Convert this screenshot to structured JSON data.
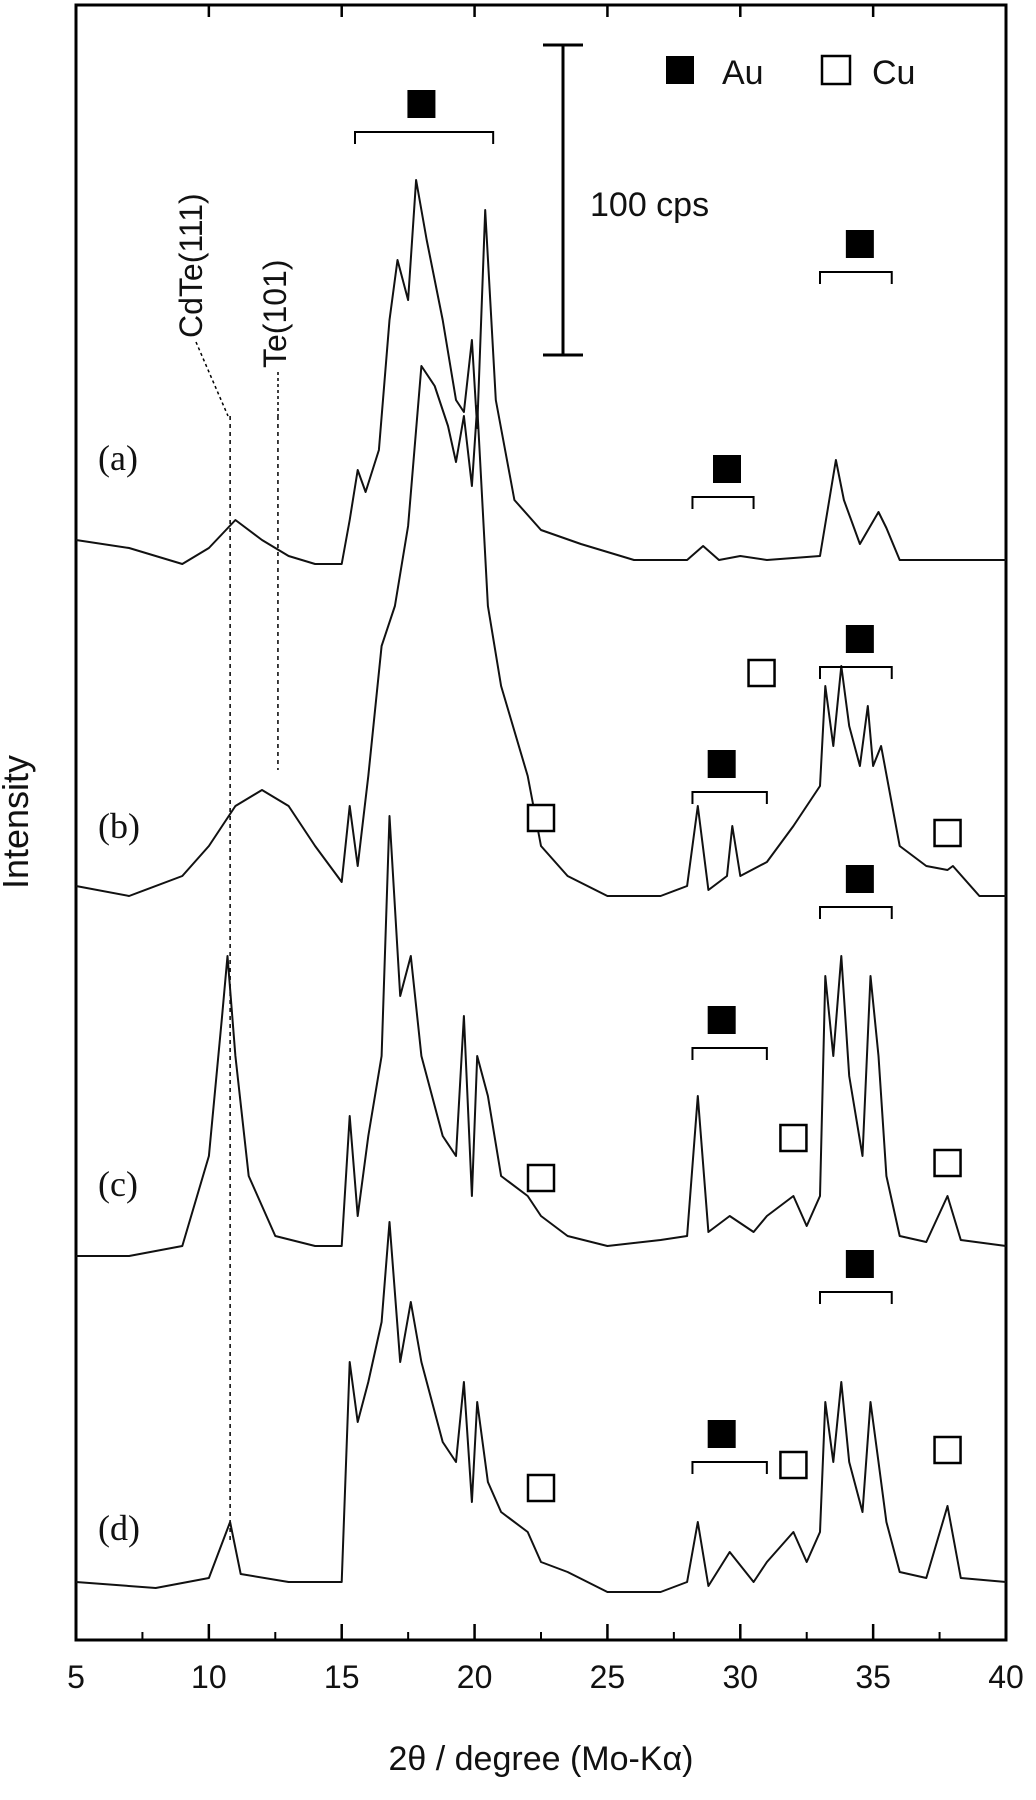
{
  "chart_data": {
    "type": "line",
    "title": "",
    "xlabel": "2θ / degree (Mo-Kα)",
    "ylabel": "Intensity",
    "xlim": [
      5,
      40
    ],
    "xticks": [
      5,
      10,
      15,
      20,
      25,
      30,
      35,
      40
    ],
    "legend": [
      {
        "name": "Au",
        "marker": "filled-square"
      },
      {
        "name": "Cu",
        "marker": "open-square"
      }
    ],
    "legend_position": "top-right",
    "scale_bar_label": "100 cps",
    "reference_lines": [
      {
        "label": "CdTe(111)",
        "x": 10.8
      },
      {
        "label": "Te(101)",
        "x": 12.6
      }
    ],
    "series": [
      {
        "name": "(a)",
        "baseline": 0,
        "points": [
          [
            5,
            0
          ],
          [
            7,
            -4
          ],
          [
            9,
            -12
          ],
          [
            10,
            -4
          ],
          [
            11,
            10
          ],
          [
            12,
            0
          ],
          [
            13,
            -8
          ],
          [
            14,
            -12
          ],
          [
            15,
            -12
          ],
          [
            15.3,
            10
          ],
          [
            15.6,
            35
          ],
          [
            15.9,
            24
          ],
          [
            16.4,
            45
          ],
          [
            16.8,
            110
          ],
          [
            17.1,
            140
          ],
          [
            17.5,
            120
          ],
          [
            17.8,
            180
          ],
          [
            18.2,
            150
          ],
          [
            18.8,
            110
          ],
          [
            19.3,
            70
          ],
          [
            19.6,
            64
          ],
          [
            19.9,
            100
          ],
          [
            20.1,
            56
          ],
          [
            20.4,
            165
          ],
          [
            20.8,
            70
          ],
          [
            21.5,
            20
          ],
          [
            22.5,
            5
          ],
          [
            24,
            -2
          ],
          [
            26,
            -10
          ],
          [
            28,
            -10
          ],
          [
            28.6,
            -3
          ],
          [
            29.2,
            -10
          ],
          [
            30,
            -8
          ],
          [
            31,
            -10
          ],
          [
            33,
            -8
          ],
          [
            33.6,
            40
          ],
          [
            33.9,
            20
          ],
          [
            34.5,
            -2
          ],
          [
            35.2,
            14
          ],
          [
            35.5,
            6
          ],
          [
            36,
            -10
          ],
          [
            38,
            -10
          ],
          [
            40,
            -10
          ]
        ],
        "markers": [
          {
            "type": "Au",
            "x": 18.0,
            "bracket": [
              15.5,
              20.7
            ]
          },
          {
            "type": "Au",
            "x": 29.5,
            "bracket": [
              28.2,
              30.5
            ]
          },
          {
            "type": "Au",
            "x": 34.5,
            "bracket": [
              33.0,
              35.7
            ]
          }
        ]
      },
      {
        "name": "(b)",
        "baseline": -140,
        "points": [
          [
            5,
            -140
          ],
          [
            7,
            -145
          ],
          [
            9,
            -135
          ],
          [
            10,
            -120
          ],
          [
            11,
            -100
          ],
          [
            12,
            -92
          ],
          [
            13,
            -100
          ],
          [
            14,
            -120
          ],
          [
            15,
            -138
          ],
          [
            15.3,
            -100
          ],
          [
            15.6,
            -130
          ],
          [
            16,
            -85
          ],
          [
            16.5,
            -20
          ],
          [
            17,
            0
          ],
          [
            17.5,
            40
          ],
          [
            18,
            120
          ],
          [
            18.5,
            110
          ],
          [
            19,
            90
          ],
          [
            19.3,
            72
          ],
          [
            19.6,
            95
          ],
          [
            19.9,
            60
          ],
          [
            20.1,
            100
          ],
          [
            20.5,
            0
          ],
          [
            21,
            -40
          ],
          [
            22,
            -85
          ],
          [
            22.5,
            -120
          ],
          [
            23.5,
            -135
          ],
          [
            25,
            -145
          ],
          [
            27,
            -145
          ],
          [
            28,
            -140
          ],
          [
            28.4,
            -100
          ],
          [
            28.8,
            -142
          ],
          [
            29.5,
            -135
          ],
          [
            29.7,
            -110
          ],
          [
            30,
            -135
          ],
          [
            31,
            -128
          ],
          [
            32,
            -110
          ],
          [
            33,
            -90
          ],
          [
            33.2,
            -40
          ],
          [
            33.5,
            -70
          ],
          [
            33.8,
            -30
          ],
          [
            34.1,
            -60
          ],
          [
            34.5,
            -80
          ],
          [
            34.8,
            -50
          ],
          [
            35,
            -80
          ],
          [
            35.3,
            -70
          ],
          [
            36,
            -120
          ],
          [
            37,
            -130
          ],
          [
            37.8,
            -132
          ],
          [
            38,
            -130
          ],
          [
            39,
            -145
          ],
          [
            40,
            -145
          ]
        ],
        "markers": [
          {
            "type": "Au",
            "x": 29.3,
            "bracket": [
              28.2,
              31.0
            ]
          },
          {
            "type": "Au",
            "x": 34.5,
            "bracket": [
              33.0,
              35.7
            ]
          },
          {
            "type": "Cu",
            "x": 22.5
          },
          {
            "type": "Cu",
            "x": 30.8
          },
          {
            "type": "Cu",
            "x": 37.8
          }
        ]
      },
      {
        "name": "(c)",
        "baseline": -290,
        "points": [
          [
            5,
            -300
          ],
          [
            7,
            -300
          ],
          [
            9,
            -295
          ],
          [
            10,
            -250
          ],
          [
            10.5,
            -180
          ],
          [
            10.7,
            -150
          ],
          [
            11,
            -200
          ],
          [
            11.5,
            -260
          ],
          [
            12.5,
            -290
          ],
          [
            14,
            -295
          ],
          [
            15,
            -295
          ],
          [
            15.3,
            -230
          ],
          [
            15.6,
            -280
          ],
          [
            16,
            -240
          ],
          [
            16.5,
            -200
          ],
          [
            16.8,
            -80
          ],
          [
            17.2,
            -170
          ],
          [
            17.6,
            -150
          ],
          [
            18,
            -200
          ],
          [
            18.8,
            -240
          ],
          [
            19.3,
            -250
          ],
          [
            19.6,
            -180
          ],
          [
            19.9,
            -270
          ],
          [
            20.1,
            -200
          ],
          [
            20.5,
            -220
          ],
          [
            21,
            -260
          ],
          [
            22,
            -270
          ],
          [
            22.5,
            -280
          ],
          [
            23.5,
            -290
          ],
          [
            25,
            -295
          ],
          [
            27,
            -292
          ],
          [
            28,
            -290
          ],
          [
            28.4,
            -220
          ],
          [
            28.8,
            -288
          ],
          [
            29.6,
            -280
          ],
          [
            30.5,
            -288
          ],
          [
            31,
            -280
          ],
          [
            32,
            -270
          ],
          [
            32.5,
            -285
          ],
          [
            33,
            -270
          ],
          [
            33.2,
            -160
          ],
          [
            33.5,
            -200
          ],
          [
            33.8,
            -150
          ],
          [
            34.1,
            -210
          ],
          [
            34.6,
            -250
          ],
          [
            34.9,
            -160
          ],
          [
            35.2,
            -200
          ],
          [
            35.5,
            -260
          ],
          [
            36,
            -290
          ],
          [
            37,
            -293
          ],
          [
            37.8,
            -270
          ],
          [
            38.3,
            -292
          ],
          [
            40,
            -295
          ]
        ],
        "markers": [
          {
            "type": "Au",
            "x": 29.3,
            "bracket": [
              28.2,
              31.0
            ]
          },
          {
            "type": "Au",
            "x": 34.5,
            "bracket": [
              33.0,
              35.7
            ]
          },
          {
            "type": "Cu",
            "x": 22.5
          },
          {
            "type": "Cu",
            "x": 32.0
          },
          {
            "type": "Cu",
            "x": 37.8
          }
        ]
      },
      {
        "name": "(d)",
        "baseline": -430,
        "points": [
          [
            5,
            -430
          ],
          [
            8,
            -433
          ],
          [
            10,
            -428
          ],
          [
            10.8,
            -400
          ],
          [
            11.2,
            -426
          ],
          [
            13,
            -430
          ],
          [
            15,
            -430
          ],
          [
            15.3,
            -320
          ],
          [
            15.6,
            -350
          ],
          [
            16,
            -330
          ],
          [
            16.5,
            -300
          ],
          [
            16.8,
            -250
          ],
          [
            17.2,
            -320
          ],
          [
            17.6,
            -290
          ],
          [
            18,
            -320
          ],
          [
            18.8,
            -360
          ],
          [
            19.3,
            -370
          ],
          [
            19.6,
            -330
          ],
          [
            19.9,
            -390
          ],
          [
            20.1,
            -340
          ],
          [
            20.5,
            -380
          ],
          [
            21,
            -395
          ],
          [
            22,
            -405
          ],
          [
            22.5,
            -420
          ],
          [
            23.5,
            -425
          ],
          [
            25,
            -435
          ],
          [
            27,
            -435
          ],
          [
            28,
            -430
          ],
          [
            28.4,
            -400
          ],
          [
            28.8,
            -432
          ],
          [
            29.6,
            -415
          ],
          [
            30.5,
            -430
          ],
          [
            31,
            -420
          ],
          [
            32,
            -405
          ],
          [
            32.5,
            -420
          ],
          [
            33,
            -405
          ],
          [
            33.2,
            -340
          ],
          [
            33.5,
            -370
          ],
          [
            33.8,
            -330
          ],
          [
            34.1,
            -370
          ],
          [
            34.6,
            -395
          ],
          [
            34.9,
            -340
          ],
          [
            35.2,
            -370
          ],
          [
            35.5,
            -400
          ],
          [
            36,
            -425
          ],
          [
            37,
            -428
          ],
          [
            37.8,
            -392
          ],
          [
            38.3,
            -428
          ],
          [
            40,
            -430
          ]
        ],
        "markers": [
          {
            "type": "Au",
            "x": 29.3,
            "bracket": [
              28.2,
              31.0
            ]
          },
          {
            "type": "Au",
            "x": 34.5,
            "bracket": [
              33.0,
              35.7
            ]
          },
          {
            "type": "Cu",
            "x": 22.5
          },
          {
            "type": "Cu",
            "x": 32.0
          },
          {
            "type": "Cu",
            "x": 37.8
          }
        ]
      }
    ]
  }
}
